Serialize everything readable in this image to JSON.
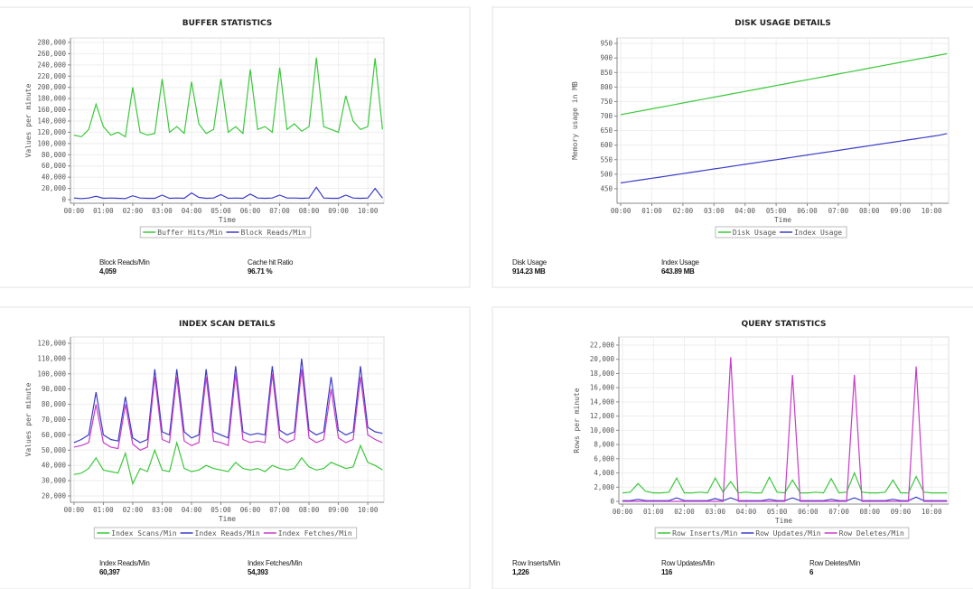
{
  "chart_data": [
    {
      "type": "line",
      "title": "BUFFER STATISTICS",
      "xlabel": "Time",
      "ylabel": "Values per minute",
      "x": [
        0,
        0.25,
        0.5,
        0.75,
        1,
        1.25,
        1.5,
        1.75,
        2,
        2.25,
        2.5,
        2.75,
        3,
        3.25,
        3.5,
        3.75,
        4,
        4.25,
        4.5,
        4.75,
        5,
        5.25,
        5.5,
        5.75,
        6,
        6.25,
        6.5,
        6.75,
        7,
        7.25,
        7.5,
        7.75,
        8,
        8.25,
        8.5,
        8.75,
        9,
        9.25,
        9.5,
        9.75,
        10,
        10.25,
        10.5
      ],
      "xlim": [
        -0.12,
        10.55
      ],
      "xticks": [
        {
          "value": 0,
          "label": "00:00"
        },
        {
          "value": 1,
          "label": "01:00"
        },
        {
          "value": 2,
          "label": "02:00"
        },
        {
          "value": 3,
          "label": "03:00"
        },
        {
          "value": 4,
          "label": "04:00"
        },
        {
          "value": 5,
          "label": "05:00"
        },
        {
          "value": 6,
          "label": "06:00"
        },
        {
          "value": 7,
          "label": "07:00"
        },
        {
          "value": 8,
          "label": "08:00"
        },
        {
          "value": 9,
          "label": "09:00"
        },
        {
          "value": 10,
          "label": "10:00"
        }
      ],
      "ylim": [
        -6400,
        288000
      ],
      "yticks": [
        0,
        {
          "value": 20000,
          "label": "20,000"
        },
        {
          "value": 40000,
          "label": "40,000"
        },
        {
          "value": 60000,
          "label": "60,000"
        },
        {
          "value": 80000,
          "label": "80,000"
        },
        {
          "value": 100000,
          "label": "100,000"
        },
        {
          "value": 120000,
          "label": "120,000"
        },
        {
          "value": 140000,
          "label": "140,000"
        },
        {
          "value": 160000,
          "label": "160,000"
        },
        {
          "value": 180000,
          "label": "180,000"
        },
        {
          "value": 200000,
          "label": "200,000"
        },
        {
          "value": 220000,
          "label": "220,000"
        },
        {
          "value": 240000,
          "label": "240,000"
        },
        {
          "value": 260000,
          "label": "260,000"
        },
        {
          "value": 280000,
          "label": "280,000"
        }
      ],
      "grid": true,
      "series": [
        {
          "name": "Buffer Hits/Min",
          "color": "#3cc83c",
          "values": [
            115000,
            112000,
            125000,
            170000,
            130000,
            115000,
            120000,
            112000,
            200000,
            120000,
            115000,
            118000,
            215000,
            120000,
            130000,
            118000,
            210000,
            135000,
            118000,
            125000,
            215000,
            120000,
            130000,
            118000,
            232000,
            125000,
            130000,
            120000,
            235000,
            125000,
            135000,
            122000,
            130000,
            253000,
            130000,
            125000,
            120000,
            185000,
            140000,
            125000,
            130000,
            252000,
            125000
          ]
        },
        {
          "name": "Block Reads/Min",
          "color": "#3c3cc8",
          "values": [
            3000,
            2000,
            3000,
            6000,
            2500,
            3000,
            2500,
            2000,
            7000,
            3000,
            2500,
            2500,
            8000,
            2500,
            3000,
            2500,
            12000,
            4000,
            2500,
            3000,
            9000,
            2500,
            3000,
            2500,
            10000,
            3000,
            2500,
            3000,
            8000,
            3000,
            3000,
            2500,
            3000,
            22000,
            3000,
            2500,
            2500,
            8000,
            3000,
            2500,
            3000,
            20000,
            3000
          ]
        }
      ]
    },
    {
      "type": "line",
      "title": "DISK USAGE DETAILS",
      "xlabel": "Time",
      "ylabel": "Memory usage in MB",
      "x": [
        0,
        0.25,
        0.5,
        0.75,
        1,
        1.25,
        1.5,
        1.75,
        2,
        2.25,
        2.5,
        2.75,
        3,
        3.25,
        3.5,
        3.75,
        4,
        4.25,
        4.5,
        4.75,
        5,
        5.25,
        5.5,
        5.75,
        6,
        6.25,
        6.5,
        6.75,
        7,
        7.25,
        7.5,
        7.75,
        8,
        8.25,
        8.5,
        8.75,
        9,
        9.25,
        9.5,
        9.75,
        10,
        10.25,
        10.5
      ],
      "xlim": [
        -0.12,
        10.55
      ],
      "xticks": [
        {
          "value": 0,
          "label": "00:00"
        },
        {
          "value": 1,
          "label": "01:00"
        },
        {
          "value": 2,
          "label": "02:00"
        },
        {
          "value": 3,
          "label": "03:00"
        },
        {
          "value": 4,
          "label": "04:00"
        },
        {
          "value": 5,
          "label": "05:00"
        },
        {
          "value": 6,
          "label": "06:00"
        },
        {
          "value": 7,
          "label": "07:00"
        },
        {
          "value": 8,
          "label": "08:00"
        },
        {
          "value": 9,
          "label": "09:00"
        },
        {
          "value": 10,
          "label": "10:00"
        }
      ],
      "ylim": [
        400,
        969
      ],
      "yticks": [
        450,
        500,
        550,
        600,
        650,
        700,
        750,
        800,
        850,
        900,
        950
      ],
      "grid": true,
      "series": [
        {
          "name": "Disk Usage",
          "color": "#3cc83c",
          "values": [
            705,
            710,
            715,
            720,
            725,
            730,
            735,
            740,
            745,
            750,
            755,
            760,
            765,
            770,
            775,
            780,
            785,
            790,
            795,
            800,
            805,
            810,
            815,
            820,
            825,
            830,
            835,
            840,
            845,
            850,
            855,
            860,
            865,
            870,
            875,
            880,
            885,
            890,
            895,
            900,
            905,
            910,
            915
          ]
        },
        {
          "name": "Index Usage",
          "color": "#3c3cc8",
          "values": [
            470,
            474,
            478,
            482,
            486,
            490,
            494,
            498,
            502,
            506,
            510,
            514,
            518,
            522,
            526,
            530,
            534,
            538,
            542,
            546,
            550,
            554,
            558,
            562,
            566,
            570,
            574,
            578,
            582,
            586,
            590,
            594,
            598,
            602,
            606,
            610,
            614,
            618,
            622,
            626,
            630,
            634,
            640
          ]
        }
      ]
    },
    {
      "type": "line",
      "title": "INDEX SCAN DETAILS",
      "xlabel": "Time",
      "ylabel": "Values per minute",
      "x": [
        0,
        0.25,
        0.5,
        0.75,
        1,
        1.25,
        1.5,
        1.75,
        2,
        2.25,
        2.5,
        2.75,
        3,
        3.25,
        3.5,
        3.75,
        4,
        4.25,
        4.5,
        4.75,
        5,
        5.25,
        5.5,
        5.75,
        6,
        6.25,
        6.5,
        6.75,
        7,
        7.25,
        7.5,
        7.75,
        8,
        8.25,
        8.5,
        8.75,
        9,
        9.25,
        9.5,
        9.75,
        10,
        10.25,
        10.5
      ],
      "xlim": [
        -0.12,
        10.55
      ],
      "xticks": [
        {
          "value": 0,
          "label": "00:00"
        },
        {
          "value": 1,
          "label": "01:00"
        },
        {
          "value": 2,
          "label": "02:00"
        },
        {
          "value": 3,
          "label": "03:00"
        },
        {
          "value": 4,
          "label": "04:00"
        },
        {
          "value": 5,
          "label": "05:00"
        },
        {
          "value": 6,
          "label": "06:00"
        },
        {
          "value": 7,
          "label": "07:00"
        },
        {
          "value": 8,
          "label": "08:00"
        },
        {
          "value": 9,
          "label": "09:00"
        },
        {
          "value": 10,
          "label": "10:00"
        }
      ],
      "ylim": [
        15860,
        124140
      ],
      "yticks": [
        {
          "value": 20000,
          "label": "20,000"
        },
        {
          "value": 30000,
          "label": "30,000"
        },
        {
          "value": 40000,
          "label": "40,000"
        },
        {
          "value": 50000,
          "label": "50,000"
        },
        {
          "value": 60000,
          "label": "60,000"
        },
        {
          "value": 70000,
          "label": "70,000"
        },
        {
          "value": 80000,
          "label": "80,000"
        },
        {
          "value": 90000,
          "label": "90,000"
        },
        {
          "value": 100000,
          "label": "100,000"
        },
        {
          "value": 110000,
          "label": "110,000"
        },
        {
          "value": 120000,
          "label": "120,000"
        }
      ],
      "grid": true,
      "series": [
        {
          "name": "Index Scans/Min",
          "color": "#3cc83c",
          "values": [
            34000,
            35000,
            38000,
            45000,
            37000,
            36000,
            35000,
            48000,
            28000,
            38000,
            36000,
            50000,
            37000,
            36000,
            55000,
            38000,
            36000,
            37000,
            40000,
            38000,
            37000,
            36000,
            42000,
            38000,
            37000,
            38000,
            36000,
            40000,
            38000,
            37000,
            38000,
            45000,
            39000,
            37000,
            38000,
            42000,
            40000,
            38000,
            39000,
            53000,
            42000,
            40000,
            37000
          ]
        },
        {
          "name": "Index Reads/Min",
          "color": "#3c3cc8",
          "values": [
            55000,
            57000,
            60000,
            88000,
            60000,
            57000,
            56000,
            85000,
            58000,
            55000,
            57000,
            103000,
            62000,
            60000,
            103000,
            62000,
            58000,
            60000,
            103000,
            62000,
            60000,
            58000,
            105000,
            62000,
            60000,
            61000,
            60000,
            105000,
            63000,
            60000,
            62000,
            110000,
            63000,
            60000,
            62000,
            98000,
            63000,
            60000,
            62000,
            105000,
            65000,
            62000,
            61000
          ]
        },
        {
          "name": "Index Fetches/Min",
          "color": "#c83cc8",
          "values": [
            52000,
            53000,
            55000,
            80000,
            55000,
            52000,
            51000,
            80000,
            54000,
            50000,
            52000,
            98000,
            57000,
            55000,
            98000,
            56000,
            53000,
            55000,
            98000,
            56000,
            55000,
            53000,
            100000,
            57000,
            55000,
            56000,
            55000,
            100000,
            58000,
            55000,
            57000,
            103000,
            58000,
            55000,
            57000,
            90000,
            58000,
            55000,
            57000,
            98000,
            60000,
            57000,
            55000
          ]
        }
      ]
    },
    {
      "type": "line",
      "title": "QUERY STATISTICS",
      "xlabel": "Time",
      "ylabel": "Rows per minute",
      "x": [
        0,
        0.25,
        0.5,
        0.75,
        1,
        1.25,
        1.5,
        1.75,
        2,
        2.25,
        2.5,
        2.75,
        3,
        3.25,
        3.5,
        3.75,
        4,
        4.25,
        4.5,
        4.75,
        5,
        5.25,
        5.5,
        5.75,
        6,
        6.25,
        6.5,
        6.75,
        7,
        7.25,
        7.5,
        7.75,
        8,
        8.25,
        8.5,
        8.75,
        9,
        9.25,
        9.5,
        9.75,
        10,
        10.25,
        10.5
      ],
      "xlim": [
        -0.12,
        10.55
      ],
      "xticks": [
        {
          "value": 0,
          "label": "00:00"
        },
        {
          "value": 1,
          "label": "01:00"
        },
        {
          "value": 2,
          "label": "02:00"
        },
        {
          "value": 3,
          "label": "03:00"
        },
        {
          "value": 4,
          "label": "04:00"
        },
        {
          "value": 5,
          "label": "05:00"
        },
        {
          "value": 6,
          "label": "06:00"
        },
        {
          "value": 7,
          "label": "07:00"
        },
        {
          "value": 8,
          "label": "08:00"
        },
        {
          "value": 9,
          "label": "09:00"
        },
        {
          "value": 10,
          "label": "10:00"
        }
      ],
      "ylim": [
        -380,
        23140
      ],
      "yticks": [
        0,
        {
          "value": 2000,
          "label": "2,000"
        },
        {
          "value": 4000,
          "label": "4,000"
        },
        {
          "value": 6000,
          "label": "6,000"
        },
        {
          "value": 8000,
          "label": "8,000"
        },
        {
          "value": 10000,
          "label": "10,000"
        },
        {
          "value": 12000,
          "label": "12,000"
        },
        {
          "value": 14000,
          "label": "14,000"
        },
        {
          "value": 16000,
          "label": "16,000"
        },
        {
          "value": 18000,
          "label": "18,000"
        },
        {
          "value": 20000,
          "label": "20,000"
        },
        {
          "value": 22000,
          "label": "22,000"
        }
      ],
      "grid": true,
      "series": [
        {
          "name": "Row Inserts/Min",
          "color": "#3cc83c",
          "values": [
            1200,
            1300,
            2500,
            1400,
            1200,
            1200,
            1300,
            3300,
            1200,
            1200,
            1300,
            1200,
            3300,
            1300,
            2800,
            1200,
            1300,
            1200,
            1200,
            3400,
            1300,
            1200,
            3000,
            1200,
            1200,
            1300,
            1200,
            3200,
            1200,
            1300,
            4000,
            1300,
            1200,
            1200,
            1300,
            3000,
            1200,
            1200,
            3500,
            1300,
            1200,
            1200,
            1200
          ]
        },
        {
          "name": "Row Updates/Min",
          "color": "#3c3cc8",
          "values": [
            100,
            100,
            300,
            100,
            100,
            100,
            100,
            500,
            100,
            100,
            100,
            100,
            400,
            100,
            500,
            100,
            100,
            100,
            100,
            300,
            100,
            100,
            500,
            100,
            100,
            100,
            100,
            300,
            100,
            100,
            500,
            100,
            100,
            100,
            100,
            300,
            100,
            100,
            600,
            100,
            100,
            100,
            100
          ]
        },
        {
          "name": "Row Deletes/Min",
          "color": "#c83cc8",
          "values": [
            0,
            0,
            0,
            0,
            0,
            0,
            0,
            0,
            0,
            0,
            0,
            0,
            0,
            0,
            20300,
            0,
            0,
            0,
            0,
            0,
            0,
            0,
            17800,
            0,
            0,
            0,
            0,
            0,
            0,
            0,
            17800,
            0,
            0,
            0,
            0,
            0,
            0,
            0,
            19000,
            0,
            0,
            0,
            0
          ]
        }
      ]
    }
  ],
  "stats": [
    [
      {
        "label": "Block Reads/Min",
        "value": "4,059"
      },
      {
        "label": "Cache hit Ratio",
        "value": "96.71 %"
      }
    ],
    [
      {
        "label": "Disk Usage",
        "value": "914.23 MB"
      },
      {
        "label": "Index Usage",
        "value": "643.89 MB"
      }
    ],
    [
      {
        "label": "Index Reads/Min",
        "value": "60,397"
      },
      {
        "label": "Index Fetches/Min",
        "value": "54,393"
      }
    ],
    [
      {
        "label": "Row Inserts/Min",
        "value": "1,226"
      },
      {
        "label": "Row Updates/Min",
        "value": "116"
      },
      {
        "label": "Row Deletes/Min",
        "value": "6"
      }
    ]
  ]
}
